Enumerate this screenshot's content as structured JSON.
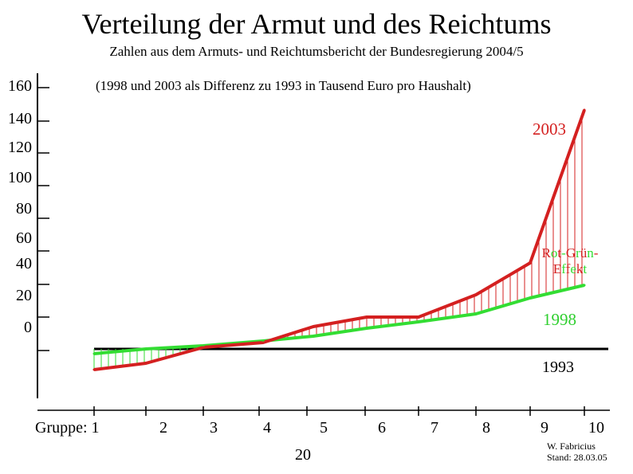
{
  "chart_data": {
    "type": "line",
    "title": "Verteilung der Armut und des Reichtums",
    "subtitle": "Zahlen aus  dem Armuts- und Reichtumsbericht der Bundesregierung 2004/5",
    "note": "(1998 und 2003 als Differenz zu 1993 in Tausend Euro pro Haushalt)",
    "y_ticks": [
      "160",
      "140",
      "120",
      "100",
      "80",
      "60",
      "40",
      "20",
      "0"
    ],
    "x_axis_prefix": "Gruppe: ",
    "categories": [
      "1",
      "2",
      "3",
      "4",
      "5",
      "6",
      "7",
      "8",
      "9",
      "10"
    ],
    "extra_x_label": "20",
    "series": [
      {
        "name": "1993",
        "color": "#000000",
        "values": [
          0,
          0,
          0,
          0,
          0,
          0,
          0,
          0,
          0,
          0
        ]
      },
      {
        "name": "1998",
        "color": "#33dd33",
        "values": [
          -3,
          0,
          2,
          5,
          8,
          13,
          17,
          22,
          32,
          40
        ]
      },
      {
        "name": "2003",
        "color": "#d42020",
        "values": [
          -13,
          -9,
          1,
          4,
          14,
          20,
          20,
          34,
          54,
          150
        ]
      }
    ],
    "annotation_effect": [
      "Rot-Grün-",
      "Effekt"
    ],
    "effect_colors": {
      "rot": "#d42020",
      "gruen": "#33dd33"
    },
    "grid": false
  },
  "credit": {
    "line1": "W. Fabricius",
    "line2": "Stand: 28.03.05"
  }
}
